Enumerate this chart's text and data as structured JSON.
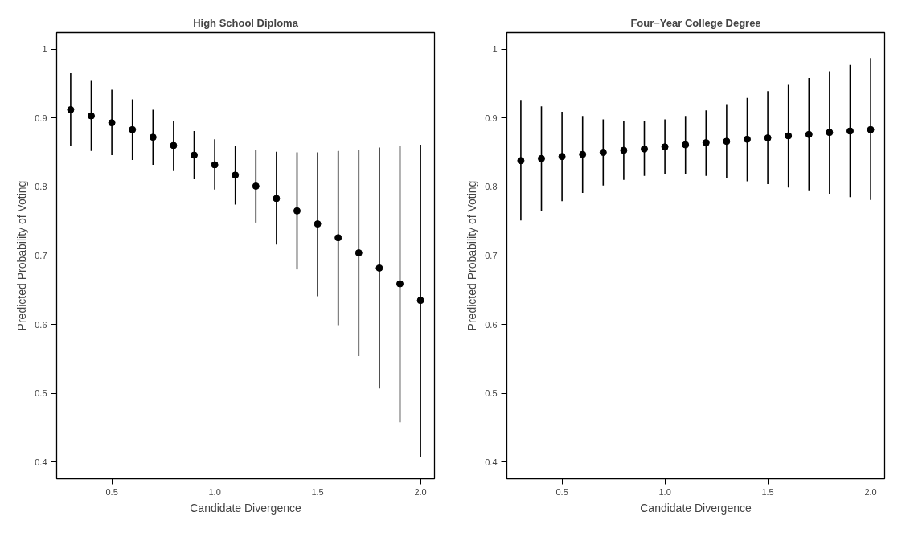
{
  "chart_data": [
    {
      "type": "scatter",
      "title": "High School Diploma",
      "xlabel": "Candidate Divergence",
      "ylabel": "Predicted Probability of Voting",
      "marker": "circle",
      "grid": false,
      "x": [
        0.3,
        0.4,
        0.5,
        0.6,
        0.7,
        0.8,
        0.9,
        1.0,
        1.1,
        1.2,
        1.3,
        1.4,
        1.5,
        1.6,
        1.7,
        1.8,
        1.9,
        2.0
      ],
      "series": [
        {
          "color": "#000000",
          "values": [
            0.912,
            0.903,
            0.893,
            0.883,
            0.872,
            0.86,
            0.846,
            0.832,
            0.817,
            0.801,
            0.783,
            0.765,
            0.746,
            0.726,
            0.704,
            0.682,
            0.659,
            0.635
          ],
          "errors": [
            [
              0.859,
              0.965
            ],
            [
              0.852,
              0.954
            ],
            [
              0.846,
              0.941
            ],
            [
              0.839,
              0.927
            ],
            [
              0.832,
              0.912
            ],
            [
              0.823,
              0.896
            ],
            [
              0.811,
              0.881
            ],
            [
              0.796,
              0.869
            ],
            [
              0.774,
              0.86
            ],
            [
              0.748,
              0.854
            ],
            [
              0.716,
              0.851
            ],
            [
              0.68,
              0.85
            ],
            [
              0.641,
              0.85
            ],
            [
              0.599,
              0.852
            ],
            [
              0.554,
              0.854
            ],
            [
              0.507,
              0.857
            ],
            [
              0.458,
              0.859
            ],
            [
              0.407,
              0.861
            ]
          ]
        }
      ],
      "xlim": [
        0.232,
        2.068
      ],
      "ylim": [
        0.376,
        1.024
      ],
      "xticks": [
        {
          "value": 0.5,
          "label": "0.5"
        },
        {
          "value": 1.0,
          "label": "1.0"
        },
        {
          "value": 1.5,
          "label": "1.5"
        },
        {
          "value": 2.0,
          "label": "2.0"
        }
      ],
      "yticks": [
        0.4,
        0.5,
        0.6,
        0.7,
        0.8,
        0.9,
        1
      ]
    },
    {
      "type": "scatter",
      "title": "Four−Year College Degree",
      "xlabel": "Candidate Divergence",
      "ylabel": "Predicted Probability of Voting",
      "marker": "circle",
      "grid": false,
      "x": [
        0.3,
        0.4,
        0.5,
        0.6,
        0.7,
        0.8,
        0.9,
        1.0,
        1.1,
        1.2,
        1.3,
        1.4,
        1.5,
        1.6,
        1.7,
        1.8,
        1.9,
        2.0
      ],
      "series": [
        {
          "color": "#000000",
          "values": [
            0.838,
            0.841,
            0.844,
            0.847,
            0.85,
            0.853,
            0.855,
            0.858,
            0.861,
            0.864,
            0.866,
            0.869,
            0.871,
            0.874,
            0.876,
            0.879,
            0.881,
            0.883
          ],
          "errors": [
            [
              0.751,
              0.925
            ],
            [
              0.765,
              0.917
            ],
            [
              0.779,
              0.909
            ],
            [
              0.791,
              0.903
            ],
            [
              0.802,
              0.898
            ],
            [
              0.81,
              0.896
            ],
            [
              0.816,
              0.896
            ],
            [
              0.819,
              0.898
            ],
            [
              0.819,
              0.903
            ],
            [
              0.816,
              0.911
            ],
            [
              0.813,
              0.92
            ],
            [
              0.808,
              0.929
            ],
            [
              0.804,
              0.939
            ],
            [
              0.799,
              0.948
            ],
            [
              0.795,
              0.958
            ],
            [
              0.79,
              0.968
            ],
            [
              0.785,
              0.977
            ],
            [
              0.781,
              0.987
            ]
          ]
        }
      ],
      "xlim": [
        0.232,
        2.068
      ],
      "ylim": [
        0.376,
        1.024
      ],
      "xticks": [
        {
          "value": 0.5,
          "label": "0.5"
        },
        {
          "value": 1.0,
          "label": "1.0"
        },
        {
          "value": 1.5,
          "label": "1.5"
        },
        {
          "value": 2.0,
          "label": "2.0"
        }
      ],
      "yticks": [
        0.4,
        0.5,
        0.6,
        0.7,
        0.8,
        0.9,
        1
      ]
    }
  ]
}
